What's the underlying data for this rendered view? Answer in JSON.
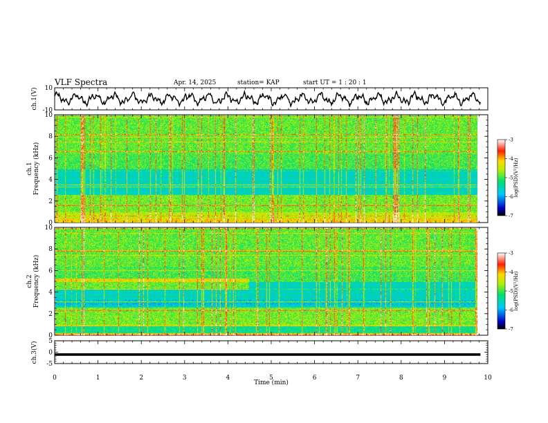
{
  "header": {
    "title": "VLF Spectra",
    "date": "Apr. 14, 2025",
    "station": "station= KAP",
    "start": "start  UT =   1 : 20 : 1"
  },
  "chart_data": [
    {
      "type": "line",
      "panel": "ch1-waveform",
      "ylabel": "ch.1(V)",
      "ylim": [
        -10,
        10
      ],
      "yticks": [
        "10",
        "-10"
      ],
      "xlim": [
        0,
        10
      ],
      "data_end_min": 9.83,
      "description": "noisy oscillating waveform, amplitude roughly +/-6 V"
    },
    {
      "type": "heatmap",
      "panel": "ch1-spectrogram",
      "ylabel": "ch.1 Frequency (kHz)",
      "ylim": [
        0,
        10
      ],
      "yticks": [
        "0",
        "2",
        "4",
        "6",
        "8",
        "10"
      ],
      "xlim": [
        0,
        10
      ],
      "data_end_min": 9.83,
      "colorbar": {
        "label": "log(PSD)(V²/Hz)",
        "ticks": [
          "-3",
          "-4",
          "-5",
          "-6",
          "-7"
        ],
        "range": [
          -7,
          -3
        ]
      }
    },
    {
      "type": "heatmap",
      "panel": "ch2-spectrogram",
      "ylabel": "ch.2 Frequency (kHz)",
      "ylim": [
        0,
        10
      ],
      "yticks": [
        "0",
        "2",
        "4",
        "6",
        "8",
        "10"
      ],
      "xlim": [
        0,
        10
      ],
      "data_end_min": 9.83,
      "colorbar": {
        "label": "log(PSD)(V²/Hz)",
        "ticks": [
          "-3",
          "-4",
          "-5",
          "-6",
          "-7"
        ],
        "range": [
          -7,
          -3
        ]
      }
    },
    {
      "type": "line",
      "panel": "ch3-waveform",
      "ylabel": "ch.3(V)",
      "ylim": [
        -5,
        5
      ],
      "yticks": [
        "5",
        "0",
        "-5"
      ],
      "xlim": [
        0,
        10
      ],
      "xlabel": "Time (min)",
      "xticks": [
        "0",
        "1",
        "2",
        "3",
        "4",
        "5",
        "6",
        "7",
        "8",
        "9",
        "10"
      ],
      "data_end_min": 9.83,
      "description": "flat thick band near -1 V"
    }
  ]
}
